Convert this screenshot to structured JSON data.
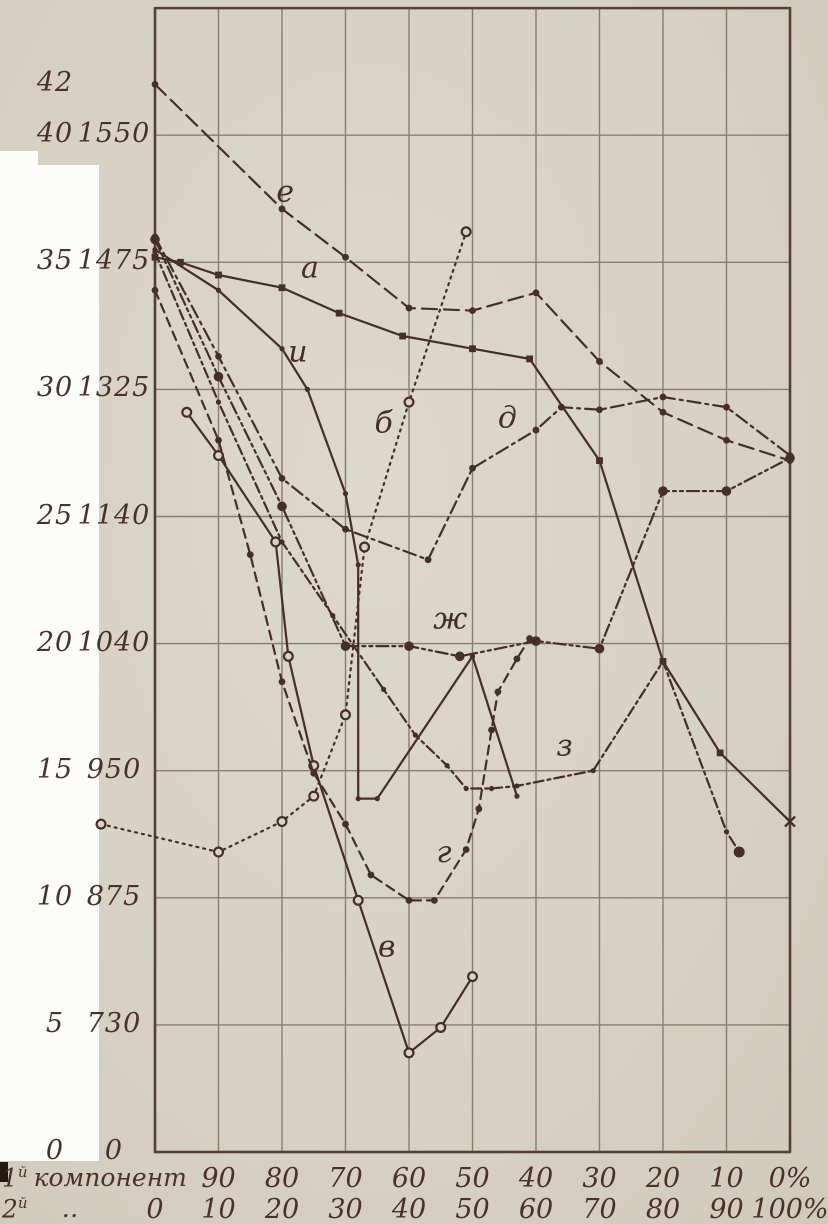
{
  "scan": {
    "paper_color": "#d8d3c6",
    "ink_color": "#452f28",
    "grid_color": "#8b7d6e",
    "white_margin_color": "#fcfcf9"
  },
  "chart_data": {
    "type": "line",
    "title": "",
    "grid": "on",
    "legend": "labels drawn beside curves",
    "x_axis": {
      "row1": {
        "num": "1",
        "sup": "й",
        "word": "компонент",
        "ticks": [
          {
            "label": "90",
            "pct": 10
          },
          {
            "label": "80",
            "pct": 20
          },
          {
            "label": "70",
            "pct": 30
          },
          {
            "label": "60",
            "pct": 40
          },
          {
            "label": "50",
            "pct": 50
          },
          {
            "label": "40",
            "pct": 60
          },
          {
            "label": "30",
            "pct": 70
          },
          {
            "label": "20",
            "pct": 80
          },
          {
            "label": "10",
            "pct": 90
          },
          {
            "label": "0%",
            "pct": 100
          }
        ]
      },
      "row2": {
        "num": "2",
        "sup": "й",
        "word": "‥",
        "ticks": [
          {
            "label": "0",
            "pct": 0
          },
          {
            "label": "10",
            "pct": 10
          },
          {
            "label": "20",
            "pct": 20
          },
          {
            "label": "30",
            "pct": 30
          },
          {
            "label": "40",
            "pct": 40
          },
          {
            "label": "50",
            "pct": 50
          },
          {
            "label": "60",
            "pct": 60
          },
          {
            "label": "70",
            "pct": 70
          },
          {
            "label": "80",
            "pct": 80
          },
          {
            "label": "90",
            "pct": 90
          },
          {
            "label": "100%",
            "pct": 100
          }
        ]
      }
    },
    "y_axis": {
      "col1_ticks": [
        {
          "label": "42",
          "value": 42
        },
        {
          "label": "40",
          "value": 40
        },
        {
          "label": "35",
          "value": 35
        },
        {
          "label": "30",
          "value": 30
        },
        {
          "label": "25",
          "value": 25
        },
        {
          "label": "20",
          "value": 20
        },
        {
          "label": "15",
          "value": 15
        },
        {
          "label": "10",
          "value": 10
        },
        {
          "label": "5",
          "value": 5
        },
        {
          "label": "0",
          "value": 0
        }
      ],
      "col2_ticks": [
        {
          "label": "1550",
          "value": 40
        },
        {
          "label": "1475",
          "value": 35
        },
        {
          "label": "1325",
          "value": 30
        },
        {
          "label": "1140",
          "value": 25
        },
        {
          "label": "1040",
          "value": 20
        },
        {
          "label": "950",
          "value": 15
        },
        {
          "label": "875",
          "value": 10
        },
        {
          "label": "730",
          "value": 5
        },
        {
          "label": "0",
          "value": 0
        }
      ],
      "range": [
        0,
        45
      ],
      "gridline_values": [
        0,
        5,
        10,
        15,
        20,
        25,
        30,
        35,
        40,
        45
      ]
    },
    "series": [
      {
        "name": "а",
        "style": "solid",
        "dash": "",
        "marker": "square",
        "end_marker": "x",
        "label_pos": [
          24.4,
          34.4
        ],
        "points": [
          [
            0,
            35.2
          ],
          [
            4,
            35.0
          ],
          [
            10,
            34.5
          ],
          [
            20,
            34.0
          ],
          [
            29,
            33.0
          ],
          [
            39,
            32.1
          ],
          [
            50,
            31.6
          ],
          [
            59,
            31.2
          ],
          [
            70,
            27.2
          ],
          [
            80,
            19.3
          ],
          [
            89,
            15.7
          ],
          [
            100,
            13.0
          ]
        ]
      },
      {
        "name": "б",
        "style": "dotted",
        "dash": "2 5",
        "marker": "ring",
        "end_marker": "",
        "label_pos": [
          36.0,
          28.3
        ],
        "points": [
          [
            -8.5,
            12.9
          ],
          [
            10,
            11.8
          ],
          [
            20,
            13.0
          ],
          [
            25,
            14.0
          ],
          [
            30,
            17.2
          ],
          [
            33,
            23.8
          ],
          [
            40,
            29.5
          ],
          [
            49,
            36.2
          ]
        ]
      },
      {
        "name": "в",
        "style": "solid",
        "dash": "",
        "marker": "ring",
        "end_marker": "",
        "label_pos": [
          36.5,
          7.7
        ],
        "points": [
          [
            5,
            29.1
          ],
          [
            10,
            27.4
          ],
          [
            19,
            24.0
          ],
          [
            21,
            19.5
          ],
          [
            25,
            15.2
          ],
          [
            32,
            9.9
          ],
          [
            40,
            3.9
          ],
          [
            45,
            4.9
          ],
          [
            50,
            6.9
          ]
        ]
      },
      {
        "name": "г",
        "style": "dashed",
        "dash": "9 6",
        "marker": "circle",
        "end_marker": "",
        "label_pos": [
          45.5,
          11.4
        ],
        "points": [
          [
            0,
            33.9
          ],
          [
            10,
            28.0
          ],
          [
            15,
            23.5
          ],
          [
            20,
            18.5
          ],
          [
            25,
            14.9
          ],
          [
            30,
            12.9
          ],
          [
            34,
            10.9
          ],
          [
            40,
            9.9
          ],
          [
            44,
            9.9
          ],
          [
            49,
            11.9
          ],
          [
            51,
            13.5
          ],
          [
            53,
            16.6
          ],
          [
            54,
            18.1
          ],
          [
            57,
            19.4
          ],
          [
            59,
            20.2
          ]
        ]
      },
      {
        "name": "д",
        "style": "dash-dot",
        "dash": "13 5 3 5",
        "marker": "circle",
        "end_marker": "",
        "label_pos": [
          55.5,
          28.5
        ],
        "points": [
          [
            0,
            36.0
          ],
          [
            10,
            31.3
          ],
          [
            20,
            26.5
          ],
          [
            30,
            24.5
          ],
          [
            43,
            23.3
          ],
          [
            50,
            26.9
          ],
          [
            60,
            28.4
          ],
          [
            64,
            29.3
          ],
          [
            70,
            29.2
          ],
          [
            80,
            29.7
          ],
          [
            90,
            29.3
          ],
          [
            100,
            27.4
          ]
        ]
      },
      {
        "name": "е",
        "style": "long-dash",
        "dash": "15 7",
        "marker": "circle",
        "end_marker": "",
        "label_pos": [
          20.5,
          37.4
        ],
        "points": [
          [
            0,
            42.0
          ],
          [
            20,
            37.1
          ],
          [
            30,
            35.2
          ],
          [
            40,
            33.2
          ],
          [
            50,
            33.1
          ],
          [
            60,
            33.8
          ],
          [
            70,
            31.1
          ],
          [
            80,
            29.1
          ],
          [
            90,
            28.0
          ],
          [
            100,
            27.2
          ]
        ]
      },
      {
        "name": "ж",
        "style": "dash-dot-dot",
        "dash": "12 4 3 4 3 4",
        "marker": "bigcircle",
        "end_marker": "",
        "label_pos": [
          46.5,
          20.6
        ],
        "points": [
          [
            0,
            35.9
          ],
          [
            10,
            30.5
          ],
          [
            20,
            25.4
          ],
          [
            30,
            19.9
          ],
          [
            40,
            19.9
          ],
          [
            48,
            19.5
          ],
          [
            60,
            20.1
          ],
          [
            70,
            19.8
          ],
          [
            80,
            26.0
          ],
          [
            90,
            26.0
          ],
          [
            100,
            27.3
          ]
        ]
      },
      {
        "name": "з",
        "style": "dash-dot",
        "dash": "10 4 3 4",
        "marker": "dot",
        "end_marker": "bigdot",
        "label_pos": [
          64.5,
          15.6
        ],
        "points": [
          [
            0,
            35.4
          ],
          [
            10,
            29.5
          ],
          [
            20,
            24.0
          ],
          [
            28,
            21.1
          ],
          [
            36,
            18.2
          ],
          [
            41,
            16.4
          ],
          [
            46,
            15.2
          ],
          [
            49,
            14.3
          ],
          [
            53,
            14.3
          ],
          [
            57,
            14.4
          ],
          [
            69,
            15.0
          ],
          [
            80,
            19.3
          ],
          [
            90,
            12.6
          ],
          [
            92,
            11.8
          ]
        ]
      },
      {
        "name": "и",
        "style": "solid",
        "dash": "",
        "marker": "dot",
        "end_marker": "",
        "label_pos": [
          22.5,
          31.1
        ],
        "points": [
          [
            0,
            35.5
          ],
          [
            10,
            33.9
          ],
          [
            20,
            31.6
          ],
          [
            24,
            30.0
          ],
          [
            30,
            25.9
          ],
          [
            32,
            23.1
          ],
          [
            32,
            13.9
          ],
          [
            35,
            13.9
          ],
          [
            50,
            19.5
          ],
          [
            57,
            14.0
          ]
        ]
      }
    ]
  }
}
